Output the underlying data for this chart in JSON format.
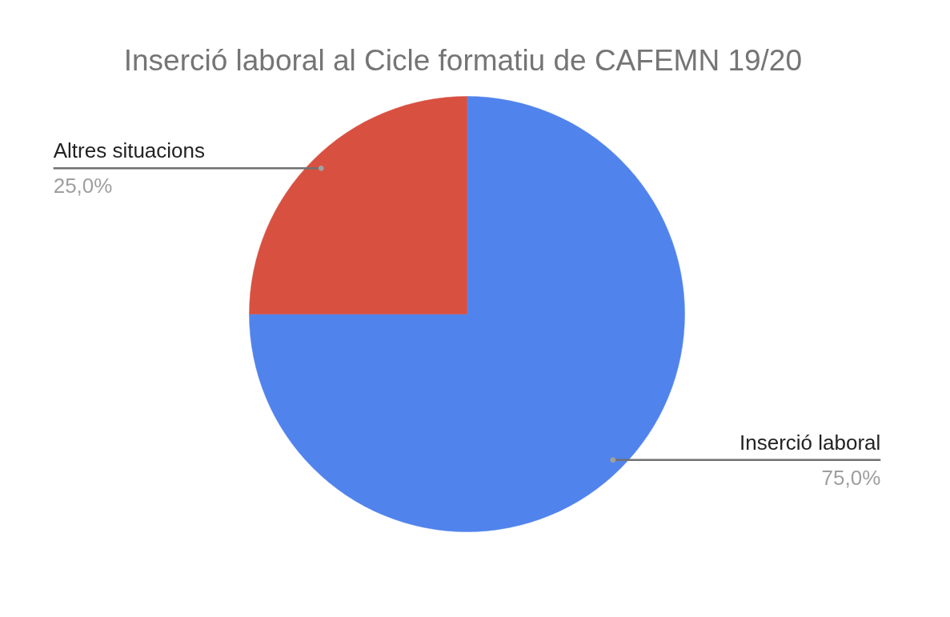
{
  "chart_data": {
    "type": "pie",
    "title": "Inserció laboral al Cicle formatiu  de CAFEMN 19/20",
    "categories": [
      "Altres situacions",
      "Inserció laboral"
    ],
    "values": [
      25,
      75
    ],
    "colors": [
      "#d85040",
      "#5083ec"
    ],
    "value_labels": [
      "25,0%",
      "75,0%"
    ]
  }
}
